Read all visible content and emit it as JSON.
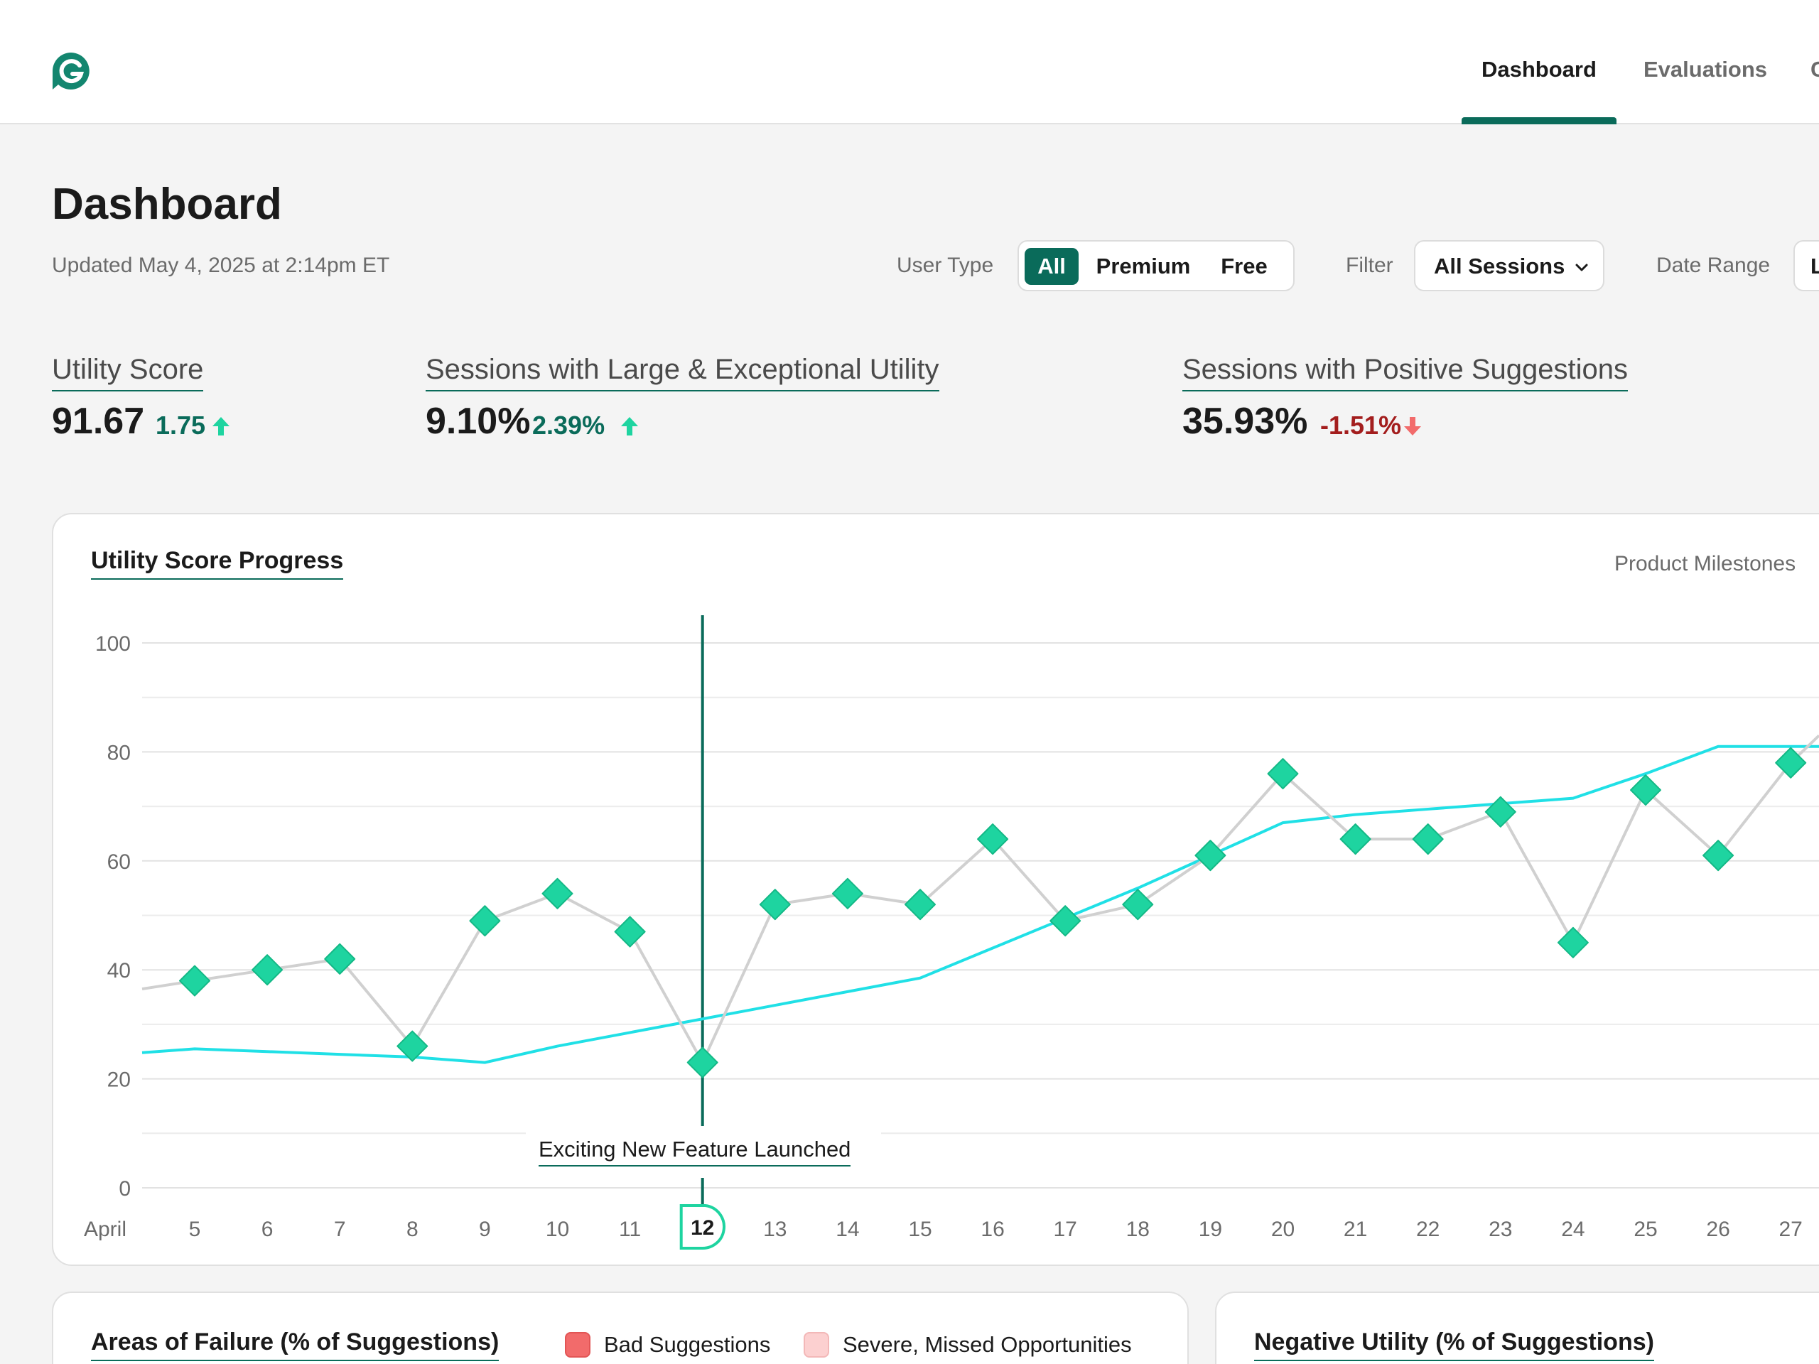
{
  "nav": {
    "tabs": [
      {
        "label": "Dashboard",
        "active": true
      },
      {
        "label": "Evaluations",
        "active": false
      },
      {
        "label": "C",
        "active": false
      }
    ],
    "accent_color": "#0a6b5a"
  },
  "header": {
    "title": "Dashboard",
    "updated": "Updated May 4, 2025 at 2:14pm ET"
  },
  "controls": {
    "user_type_label": "User Type",
    "user_type_options": [
      "All",
      "Premium",
      "Free"
    ],
    "user_type_selected": "All",
    "filter_label": "Filter",
    "filter_value": "All Sessions",
    "date_range_label": "Date Range",
    "date_range_value": "L"
  },
  "metrics": [
    {
      "label": "Utility Score",
      "value": "91.67",
      "delta": "1.75",
      "direction": "up"
    },
    {
      "label": "Sessions with Large & Exceptional Utility",
      "value": "9.10%",
      "delta": "2.39%",
      "direction": "up"
    },
    {
      "label": "Sessions with Positive Suggestions",
      "value": "35.93%",
      "delta": "-1.51%",
      "direction": "down"
    }
  ],
  "progress_card": {
    "title": "Utility Score Progress",
    "milestones_label": "Product Milestones",
    "annotation": "Exciting New Feature Launched",
    "highlight_day": "12"
  },
  "chart_data": {
    "type": "line",
    "x_month_label": "April",
    "categories": [
      "5",
      "6",
      "7",
      "8",
      "9",
      "10",
      "11",
      "12",
      "13",
      "14",
      "15",
      "16",
      "17",
      "18",
      "19",
      "20",
      "21",
      "22",
      "23",
      "24",
      "25",
      "26",
      "27"
    ],
    "ylim": [
      0,
      100
    ],
    "yticks": [
      0,
      20,
      40,
      60,
      80,
      100
    ],
    "grid": true,
    "series": [
      {
        "marker": "diamond",
        "color": "#1ed4a0",
        "values": [
          38,
          40,
          42,
          26,
          49,
          54,
          47,
          23,
          52,
          54,
          52,
          64,
          49,
          52,
          61,
          76,
          64,
          64,
          69,
          45,
          73,
          61,
          78
        ]
      },
      {
        "marker": "none",
        "color": "#20e0e6",
        "values": [
          25.5,
          25,
          24.5,
          24,
          23,
          26,
          28.5,
          31,
          33.5,
          36,
          38.5,
          44,
          49.5,
          55,
          61,
          67,
          68.5,
          69.5,
          70.5,
          71.5,
          76,
          81,
          81
        ]
      }
    ]
  },
  "failure_card": {
    "title": "Areas of Failure (% of Suggestions)",
    "legend": [
      {
        "label": "Bad Suggestions",
        "color": "#f26b6b"
      },
      {
        "label": "Severe, Missed Opportunities",
        "color": "#fcd0d0"
      }
    ]
  },
  "negative_card": {
    "title": "Negative Utility (% of Suggestions)"
  }
}
